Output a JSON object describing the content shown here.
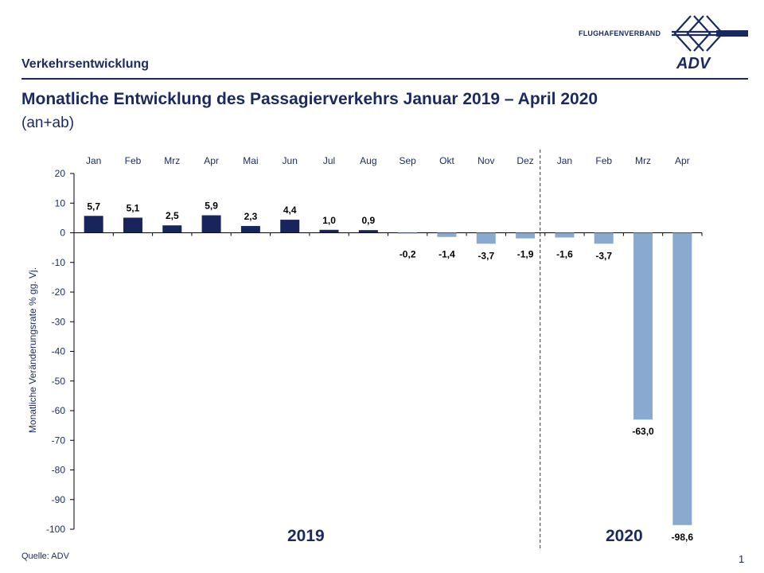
{
  "header": {
    "section": "Verkehrsentwicklung",
    "logo_text": "FLUGHAFENVERBAND",
    "logo_brand": "ADV"
  },
  "title": {
    "main": "Monatliche Entwicklung des Passagierverkehrs  Januar 2019 – April 2020",
    "sub": "(an+ab)"
  },
  "footer": {
    "source": "Quelle: ADV",
    "page": "1"
  },
  "colors": {
    "bar_2019": "#17255c",
    "bar_2019_neg": "#8aa9cf",
    "bar_2020": "#8aa9cf",
    "text": "#1a2a5e"
  },
  "chart_data": {
    "type": "bar",
    "title": "Monatliche Entwicklung des Passagierverkehrs  Januar 2019 – April 2020",
    "xlabel": "",
    "ylabel": "Monatliche Veränderungsrate % gg. Vj.",
    "ylim": [
      -100,
      20
    ],
    "yticks": [
      20,
      10,
      0,
      -10,
      -20,
      -30,
      -40,
      -50,
      -60,
      -70,
      -80,
      -90,
      -100
    ],
    "categories": [
      "Jan",
      "Feb",
      "Mrz",
      "Apr",
      "Mai",
      "Jun",
      "Jul",
      "Aug",
      "Sep",
      "Okt",
      "Nov",
      "Dez",
      "Jan",
      "Feb",
      "Mrz",
      "Apr"
    ],
    "years": [
      "2019",
      "2019",
      "2019",
      "2019",
      "2019",
      "2019",
      "2019",
      "2019",
      "2019",
      "2019",
      "2019",
      "2019",
      "2020",
      "2020",
      "2020",
      "2020"
    ],
    "values": [
      5.7,
      5.1,
      2.5,
      5.9,
      2.3,
      4.4,
      1.0,
      0.9,
      -0.2,
      -1.4,
      -3.7,
      -1.9,
      -1.6,
      -3.7,
      -63.0,
      -98.6
    ],
    "value_labels": [
      "5,7",
      "5,1",
      "2,5",
      "5,9",
      "2,3",
      "4,4",
      "1,0",
      "0,9",
      "-0,2",
      "-1,4",
      "-3,7",
      "-1,9",
      "-1,6",
      "-3,7",
      "-63,0",
      "-98,6"
    ],
    "year_labels": [
      "2019",
      "2020"
    ],
    "grid": false,
    "legend": "none"
  }
}
